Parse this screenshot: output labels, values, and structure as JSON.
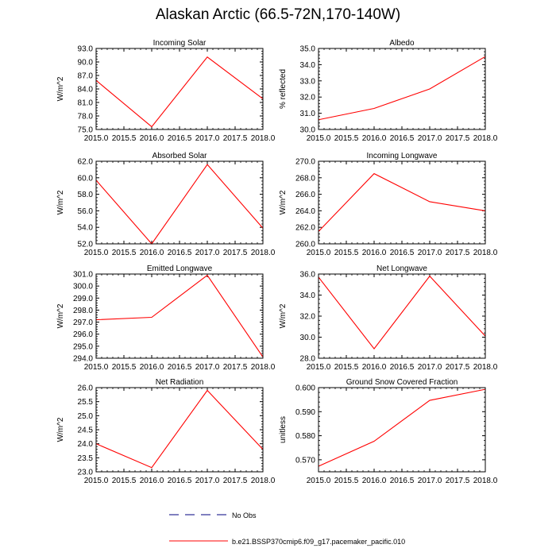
{
  "title": "Alaskan Arctic (66.5-72N,170-140W)",
  "colors": {
    "model_line": "#ff0000",
    "obs_line": "#00007f",
    "axis": "#000000"
  },
  "legend": {
    "obs_label": "No Obs",
    "model_label": "b.e21.BSSP370cmip6.f09_g17.pacemaker_pacific.010"
  },
  "chart_data": [
    {
      "type": "line",
      "title": "Incoming Solar",
      "xlabel": "",
      "ylabel": "W/m^2",
      "x": [
        2015,
        2016,
        2017,
        2018
      ],
      "y": [
        85.9,
        75.6,
        91.1,
        81.8
      ],
      "xlim": [
        2015,
        2018
      ],
      "ylim": [
        75,
        93
      ],
      "xticks": [
        2015,
        2015.5,
        2016,
        2016.5,
        2017,
        2017.5,
        2018
      ],
      "xtick_labels": [
        "2015.0",
        "2015.5",
        "2016.0",
        "2016.5",
        "2017.0",
        "2017.5",
        "2018.0"
      ],
      "yticks": [
        75,
        78,
        81,
        84,
        87,
        90,
        93
      ],
      "ytick_labels": [
        "75.0",
        "78.0",
        "81.0",
        "84.0",
        "87.0",
        "90.0",
        "93.0"
      ]
    },
    {
      "type": "line",
      "title": "Albedo",
      "xlabel": "",
      "ylabel": "% reflected",
      "x": [
        2015,
        2016,
        2017,
        2018
      ],
      "y": [
        30.6,
        31.3,
        32.5,
        34.5
      ],
      "xlim": [
        2015,
        2018
      ],
      "ylim": [
        30,
        35
      ],
      "xticks": [
        2015,
        2015.5,
        2016,
        2016.5,
        2017,
        2017.5,
        2018
      ],
      "xtick_labels": [
        "2015.0",
        "2015.5",
        "2016.0",
        "2016.5",
        "2017.0",
        "2017.5",
        "2018.0"
      ],
      "yticks": [
        30,
        31,
        32,
        33,
        34,
        35
      ],
      "ytick_labels": [
        "30.0",
        "31.0",
        "32.0",
        "33.0",
        "34.0",
        "35.0"
      ]
    },
    {
      "type": "line",
      "title": "Absorbed Solar",
      "xlabel": "",
      "ylabel": "W/m^2",
      "x": [
        2015,
        2016,
        2017,
        2018
      ],
      "y": [
        59.7,
        52.0,
        61.6,
        53.9
      ],
      "xlim": [
        2015,
        2018
      ],
      "ylim": [
        52,
        62
      ],
      "xticks": [
        2015,
        2015.5,
        2016,
        2016.5,
        2017,
        2017.5,
        2018
      ],
      "xtick_labels": [
        "2015.0",
        "2015.5",
        "2016.0",
        "2016.5",
        "2017.0",
        "2017.5",
        "2018.0"
      ],
      "yticks": [
        52,
        54,
        56,
        58,
        60,
        62
      ],
      "ytick_labels": [
        "52.0",
        "54.0",
        "56.0",
        "58.0",
        "60.0",
        "62.0"
      ]
    },
    {
      "type": "line",
      "title": "Incoming Longwave",
      "xlabel": "",
      "ylabel": "W/m^2",
      "x": [
        2015,
        2016,
        2017,
        2018
      ],
      "y": [
        261.5,
        268.5,
        265.1,
        264.0
      ],
      "xlim": [
        2015,
        2018
      ],
      "ylim": [
        260,
        270
      ],
      "xticks": [
        2015,
        2015.5,
        2016,
        2016.5,
        2017,
        2017.5,
        2018
      ],
      "xtick_labels": [
        "2015.0",
        "2015.5",
        "2016.0",
        "2016.5",
        "2017.0",
        "2017.5",
        "2018.0"
      ],
      "yticks": [
        260,
        262,
        264,
        266,
        268,
        270
      ],
      "ytick_labels": [
        "260.0",
        "262.0",
        "264.0",
        "266.0",
        "268.0",
        "270.0"
      ]
    },
    {
      "type": "line",
      "title": "Emitted Longwave",
      "xlabel": "",
      "ylabel": "W/m^2",
      "x": [
        2015,
        2016,
        2017,
        2018
      ],
      "y": [
        297.2,
        297.4,
        300.9,
        294.1
      ],
      "xlim": [
        2015,
        2018
      ],
      "ylim": [
        294,
        301
      ],
      "xticks": [
        2015,
        2015.5,
        2016,
        2016.5,
        2017,
        2017.5,
        2018
      ],
      "xtick_labels": [
        "2015.0",
        "2015.5",
        "2016.0",
        "2016.5",
        "2017.0",
        "2017.5",
        "2018.0"
      ],
      "yticks": [
        294,
        295,
        296,
        297,
        298,
        299,
        300,
        301
      ],
      "ytick_labels": [
        "294.0",
        "295.0",
        "296.0",
        "297.0",
        "298.0",
        "299.0",
        "300.0",
        "301.0"
      ]
    },
    {
      "type": "line",
      "title": "Net Longwave",
      "xlabel": "",
      "ylabel": "W/m^2",
      "x": [
        2015,
        2016,
        2017,
        2018
      ],
      "y": [
        35.7,
        28.9,
        35.8,
        30.1
      ],
      "xlim": [
        2015,
        2018
      ],
      "ylim": [
        28,
        36
      ],
      "xticks": [
        2015,
        2015.5,
        2016,
        2016.5,
        2017,
        2017.5,
        2018
      ],
      "xtick_labels": [
        "2015.0",
        "2015.5",
        "2016.0",
        "2016.5",
        "2017.0",
        "2017.5",
        "2018.0"
      ],
      "yticks": [
        28,
        30,
        32,
        34,
        36
      ],
      "ytick_labels": [
        "28.0",
        "30.0",
        "32.0",
        "34.0",
        "36.0"
      ]
    },
    {
      "type": "line",
      "title": "Net Radiation",
      "xlabel": "",
      "ylabel": "W/m^2",
      "x": [
        2015,
        2016,
        2017,
        2018
      ],
      "y": [
        24.0,
        23.15,
        25.9,
        23.8
      ],
      "xlim": [
        2015,
        2018
      ],
      "ylim": [
        23,
        26
      ],
      "xticks": [
        2015,
        2015.5,
        2016,
        2016.5,
        2017,
        2017.5,
        2018
      ],
      "xtick_labels": [
        "2015.0",
        "2015.5",
        "2016.0",
        "2016.5",
        "2017.0",
        "2017.5",
        "2018.0"
      ],
      "yticks": [
        23,
        23.5,
        24,
        24.5,
        25,
        25.5,
        26
      ],
      "ytick_labels": [
        "23.0",
        "23.5",
        "24.0",
        "24.5",
        "25.0",
        "25.5",
        "26.0"
      ]
    },
    {
      "type": "line",
      "title": "Ground Snow Covered Fraction",
      "xlabel": "",
      "ylabel": "unitless",
      "x": [
        2015,
        2016,
        2017,
        2018
      ],
      "y": [
        0.5673,
        0.5777,
        0.5947,
        0.5993
      ],
      "xlim": [
        2015,
        2018
      ],
      "ylim": [
        0.565,
        0.6
      ],
      "xticks": [
        2015,
        2015.5,
        2016,
        2016.5,
        2017,
        2017.5,
        2018
      ],
      "xtick_labels": [
        "2015.0",
        "2015.5",
        "2016.0",
        "2016.5",
        "2017.0",
        "2017.5",
        "2018.0"
      ],
      "yticks": [
        0.57,
        0.58,
        0.59,
        0.6
      ],
      "ytick_labels": [
        "0.570",
        "0.580",
        "0.590",
        "0.600"
      ]
    }
  ]
}
